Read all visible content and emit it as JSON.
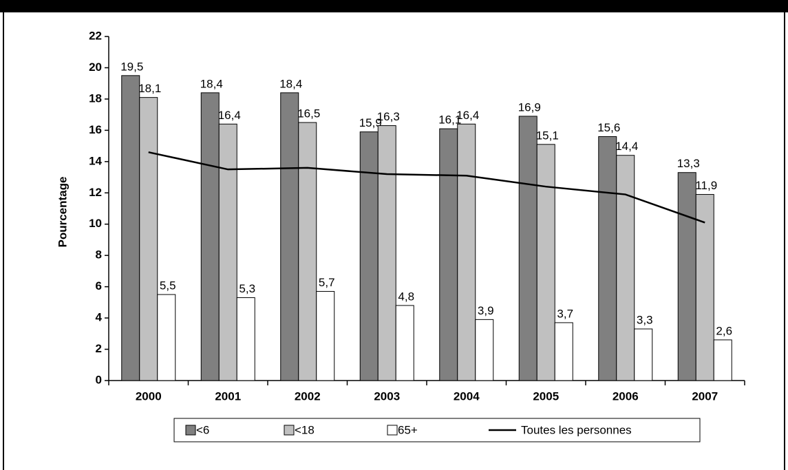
{
  "chart_data": {
    "type": "bar",
    "categories": [
      "2000",
      "2001",
      "2002",
      "2003",
      "2004",
      "2005",
      "2006",
      "2007"
    ],
    "y_label": "Pourcentage",
    "ylim": [
      0,
      22
    ],
    "yticks": [
      0,
      2,
      4,
      6,
      8,
      10,
      12,
      14,
      16,
      18,
      20,
      22
    ],
    "series": [
      {
        "name": "<6",
        "type": "bar",
        "color": "#808080",
        "values": [
          19.5,
          18.4,
          18.4,
          15.9,
          16.1,
          16.9,
          15.6,
          13.3
        ],
        "value_labels": [
          "19,5",
          "18,4",
          "18,4",
          "15,9",
          "16,1",
          "16,9",
          "15,6",
          "13,3"
        ]
      },
      {
        "name": "<18",
        "type": "bar",
        "color": "#c0c0c0",
        "values": [
          18.1,
          16.4,
          16.5,
          16.3,
          16.4,
          15.1,
          14.4,
          11.9
        ],
        "value_labels": [
          "18,1",
          "16,4",
          "16,5",
          "16,3",
          "16,4",
          "15,1",
          "14,4",
          "11,9"
        ]
      },
      {
        "name": "65+",
        "type": "bar",
        "color": "#ffffff",
        "values": [
          5.5,
          5.3,
          5.7,
          4.8,
          3.9,
          3.7,
          3.3,
          2.6
        ],
        "value_labels": [
          "5,5",
          "5,3",
          "5,7",
          "4,8",
          "3,9",
          "3,7",
          "3,3",
          "2,6"
        ]
      },
      {
        "name": "Toutes les personnes",
        "type": "line",
        "color": "#000000",
        "values": [
          14.6,
          13.5,
          13.6,
          13.2,
          13.1,
          12.4,
          11.9,
          10.1
        ]
      }
    ]
  }
}
